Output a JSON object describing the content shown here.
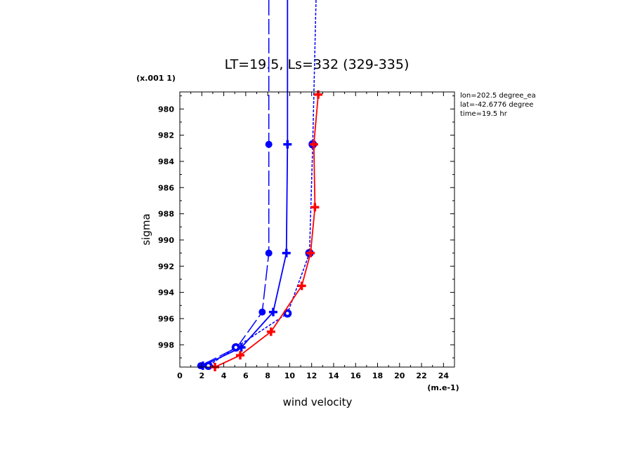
{
  "chart_data": {
    "type": "line",
    "title": "LT=19.5, Ls=332 (329-335)",
    "xlabel": "wind velocity",
    "ylabel": "sigma",
    "x_units_label": "(m.e-1)",
    "y_scale_label": "(x.001 1)",
    "xlim": [
      0,
      25
    ],
    "ylim_sigma_thousandths": [
      978.7,
      999.7
    ],
    "y_inverted": true,
    "x_ticks": [
      0,
      2,
      4,
      6,
      8,
      10,
      12,
      14,
      16,
      18,
      20,
      22,
      24
    ],
    "y_ticks": [
      980,
      982,
      984,
      986,
      988,
      990,
      992,
      994,
      996,
      998
    ],
    "info_lines": [
      "lon=202.5 degree_ea",
      "lat=-42.6776 degree",
      "time=19.5 hr"
    ],
    "series": [
      {
        "color": "#0000ff",
        "line": "long-dash",
        "marker": "circle",
        "points": [
          [
            8.1,
            960
          ],
          [
            8.1,
            982.7
          ],
          [
            8.1,
            991.0
          ],
          [
            7.5,
            995.5
          ],
          [
            5.2,
            998.2
          ],
          [
            1.9,
            999.6
          ]
        ]
      },
      {
        "color": "#0000ff",
        "line": "solid",
        "marker": "plus",
        "points": [
          [
            9.8,
            960
          ],
          [
            9.8,
            982.7
          ],
          [
            9.7,
            991.0
          ],
          [
            8.5,
            995.5
          ],
          [
            5.6,
            998.2
          ],
          [
            2.1,
            999.6
          ]
        ]
      },
      {
        "color": "#0000ff",
        "line": "dashed",
        "marker": "big-circle",
        "points": [
          [
            12.4,
            960
          ],
          [
            12.1,
            982.7
          ],
          [
            11.8,
            991.0
          ],
          [
            9.8,
            995.6
          ],
          [
            5.1,
            998.2
          ],
          [
            2.6,
            999.6
          ]
        ]
      },
      {
        "color": "#ff0000",
        "line": "solid",
        "marker": "plus",
        "points": [
          [
            12.6,
            978.9
          ],
          [
            12.2,
            982.7
          ],
          [
            12.3,
            987.5
          ],
          [
            11.9,
            991.0
          ],
          [
            11.1,
            993.5
          ],
          [
            8.3,
            997.0
          ],
          [
            5.5,
            998.8
          ],
          [
            3.2,
            999.7
          ]
        ]
      }
    ]
  }
}
